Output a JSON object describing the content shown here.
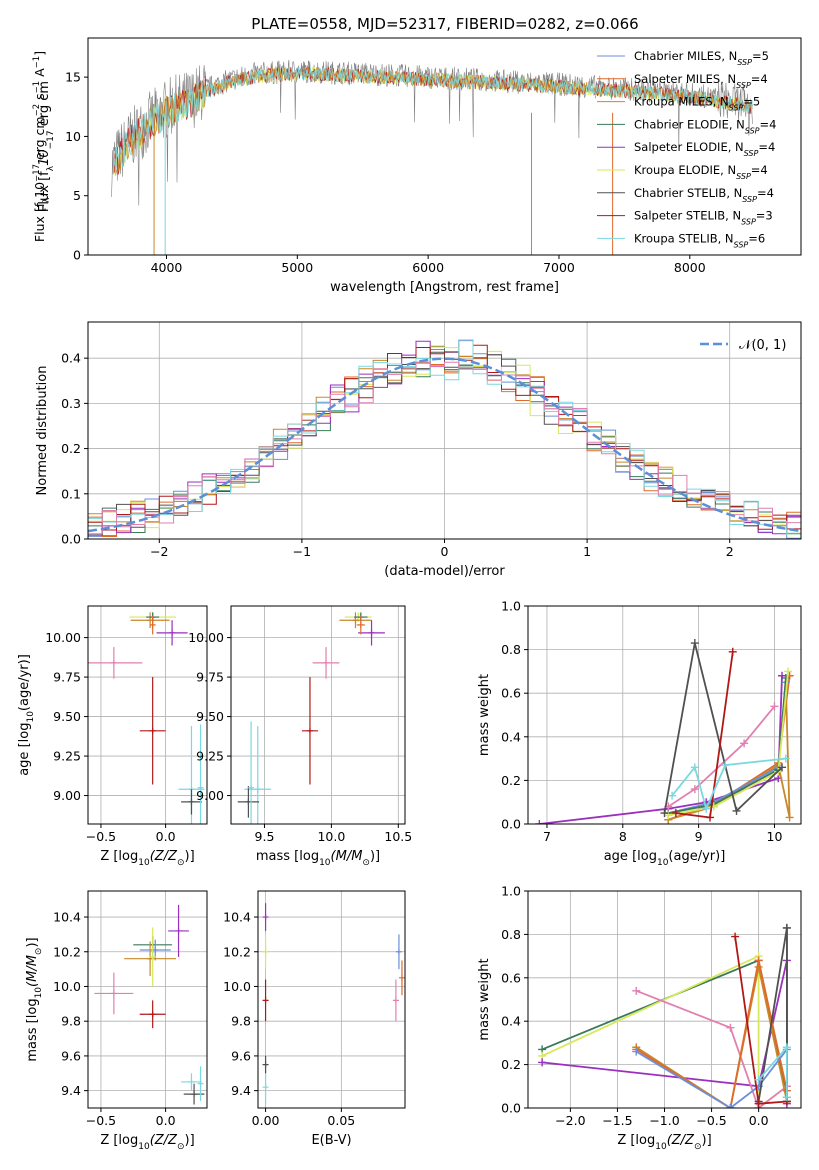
{
  "title": "PLATE=0558, MJD=52317, FIBERID=0282, z=0.066",
  "colors": {
    "chabrier_miles": "#6b8fd8",
    "salpeter_miles": "#e06a2a",
    "kroupa_miles": "#c8882a",
    "chabrier_elodie": "#3a7a5a",
    "salpeter_elodie": "#9b2fbf",
    "kroupa_elodie": "#d8e85a",
    "chabrier_stelib": "#505050",
    "salpeter_stelib": "#b01818",
    "kroupa_stelib": "#7ad8e0",
    "pink": "#e27fb0",
    "spectrum_gray": "#808080",
    "normal_curve": "#5b8fd8",
    "grid": "#b0b0b0"
  },
  "chart_data": [
    {
      "id": "spectrum",
      "type": "line",
      "xlabel": "wavelength [Angstrom, rest frame]",
      "ylabel": "Flux [f",
      "ylabel_parts": [
        "Flux [f",
        "λ",
        "10",
        "−17",
        " erg cm",
        "−2",
        " s",
        "−1",
        " A",
        "−1",
        "]"
      ],
      "xlim": [
        3400,
        8850
      ],
      "ylim": [
        0,
        18.3
      ],
      "xticks": [
        4000,
        5000,
        6000,
        7000,
        8000
      ],
      "yticks": [
        0,
        5,
        10,
        15
      ],
      "grid": false,
      "legend_position": "top-right",
      "legend": [
        {
          "base": "Chabrier MILES, N",
          "sub": "SSP",
          "tail": "=5",
          "color": "#6b8fd8"
        },
        {
          "base": "Salpeter MILES, N",
          "sub": "SSP",
          "tail": "=4",
          "color": "#e06a2a"
        },
        {
          "base": "Kroupa MILES, N",
          "sub": "SSP",
          "tail": "=5",
          "color": "#c8882a"
        },
        {
          "base": "Chabrier ELODIE, N",
          "sub": "SSP",
          "tail": "=4",
          "color": "#3a7a5a"
        },
        {
          "base": "Salpeter ELODIE, N",
          "sub": "SSP",
          "tail": "=4",
          "color": "#9b2fbf"
        },
        {
          "base": "Kroupa ELODIE, N",
          "sub": "SSP",
          "tail": "=4",
          "color": "#d8e85a"
        },
        {
          "base": "Chabrier STELIB, N",
          "sub": "SSP",
          "tail": "=4",
          "color": "#505050"
        },
        {
          "base": "Salpeter STELIB, N",
          "sub": "SSP",
          "tail": "=3",
          "color": "#b01818"
        },
        {
          "base": "Kroupa STELIB, N",
          "sub": "SSP",
          "tail": "=6",
          "color": "#7ad8e0"
        }
      ],
      "continuum": {
        "x": [
          3580,
          3700,
          3800,
          3900,
          4000,
          4100,
          4200,
          4300,
          4500,
          4700,
          5000,
          5500,
          6000,
          6500,
          7000,
          7500,
          8000,
          8300,
          8500
        ],
        "y": [
          7.5,
          9.5,
          10.5,
          11.5,
          12.3,
          12.8,
          13.2,
          14.0,
          14.8,
          15.3,
          15.5,
          15.3,
          15.0,
          14.7,
          14.4,
          14.0,
          13.6,
          13.0,
          12.6
        ]
      },
      "spikes": [
        {
          "x": 3905,
          "color": "#c8882a"
        },
        {
          "x": 3990,
          "color": "#7ad8e0"
        },
        {
          "x": 6790,
          "color": "#c8882a"
        },
        {
          "x": 7410,
          "color": "#e06a2a"
        }
      ]
    },
    {
      "id": "normed",
      "type": "line",
      "xlabel": "(data-model)/error",
      "ylabel": "Normed distribution",
      "xlim": [
        -2.5,
        2.5
      ],
      "ylim": [
        0,
        0.48
      ],
      "xticks": [
        -2,
        -1,
        0,
        1,
        2
      ],
      "yticks": [
        0.0,
        0.1,
        0.2,
        0.3,
        0.4
      ],
      "grid": true,
      "legend_position": "top-right",
      "legend_label": "𝒩(0, 1)",
      "bin_width": 0.1
    },
    {
      "id": "age_vs_z",
      "type": "scatter",
      "xlabel": "Z [log",
      "xlabel_parts": [
        "Z [log",
        "10",
        "(Z/Z",
        "⊙",
        ")]"
      ],
      "ylabel_parts": [
        "age  [log",
        "10",
        "(age/yr)]"
      ],
      "xlim": [
        -0.6,
        0.32
      ],
      "ylim": [
        8.82,
        10.2
      ],
      "xticks": [
        -0.5,
        0.0
      ],
      "yticks": [
        9.0,
        9.25,
        9.5,
        9.75,
        10.0
      ],
      "grid": true,
      "points": [
        {
          "x": -0.1,
          "y": 10.13,
          "xerr": 0.18,
          "yerr": 0.03,
          "color": "#d8e85a"
        },
        {
          "x": -0.12,
          "y": 10.11,
          "xerr": 0.15,
          "yerr": 0.05,
          "color": "#c8882a"
        },
        {
          "x": -0.1,
          "y": 10.13,
          "xerr": 0.05,
          "yerr": 0.03,
          "color": "#3a7a5a"
        },
        {
          "x": 0.05,
          "y": 10.03,
          "xerr": 0.12,
          "yerr": 0.08,
          "color": "#9b2fbf"
        },
        {
          "x": -0.1,
          "y": 10.08,
          "xerr": 0.02,
          "yerr": 0.06,
          "color": "#e06a2a"
        },
        {
          "x": -0.4,
          "y": 9.84,
          "xerr": 0.22,
          "yerr": 0.1,
          "color": "#e27fb0"
        },
        {
          "x": -0.1,
          "y": 9.41,
          "xerr": 0.1,
          "yerr": 0.34,
          "color": "#b01818"
        },
        {
          "x": 0.2,
          "y": 9.04,
          "xerr": 0.1,
          "yerr": 0.4,
          "color": "#7ad8e0"
        },
        {
          "x": 0.2,
          "y": 8.96,
          "xerr": 0.08,
          "yerr": 0.08,
          "color": "#505050"
        },
        {
          "x": 0.27,
          "y": 9.05,
          "xerr": 0.01,
          "yerr": 0.4,
          "color": "#7ad8e0"
        }
      ]
    },
    {
      "id": "age_vs_mass",
      "type": "scatter",
      "xlabel_parts": [
        "mass [log",
        "10",
        "(M/M",
        "⊙",
        ")]"
      ],
      "xlim": [
        9.25,
        10.55
      ],
      "ylim": [
        8.82,
        10.2
      ],
      "xticks": [
        9.5,
        10.0,
        10.5
      ],
      "yticks": [
        9.0,
        9.25,
        9.5,
        9.75,
        10.0
      ],
      "grid": true,
      "points": [
        {
          "x": 10.2,
          "y": 10.13,
          "xerr": 0.1,
          "yerr": 0.03,
          "color": "#d8e85a"
        },
        {
          "x": 10.18,
          "y": 10.11,
          "xerr": 0.12,
          "yerr": 0.05,
          "color": "#c8882a"
        },
        {
          "x": 10.22,
          "y": 10.13,
          "xerr": 0.05,
          "yerr": 0.03,
          "color": "#3a7a5a"
        },
        {
          "x": 10.3,
          "y": 10.03,
          "xerr": 0.1,
          "yerr": 0.08,
          "color": "#9b2fbf"
        },
        {
          "x": 10.22,
          "y": 10.08,
          "xerr": 0.03,
          "yerr": 0.06,
          "color": "#e06a2a"
        },
        {
          "x": 9.96,
          "y": 9.84,
          "xerr": 0.1,
          "yerr": 0.1,
          "color": "#e27fb0"
        },
        {
          "x": 9.84,
          "y": 9.41,
          "xerr": 0.06,
          "yerr": 0.34,
          "color": "#b01818"
        },
        {
          "x": 9.45,
          "y": 9.04,
          "xerr": 0.1,
          "yerr": 0.4,
          "color": "#7ad8e0"
        },
        {
          "x": 9.38,
          "y": 8.96,
          "xerr": 0.08,
          "yerr": 0.1,
          "color": "#505050"
        },
        {
          "x": 9.4,
          "y": 9.05,
          "xerr": 0.01,
          "yerr": 0.42,
          "color": "#7ad8e0"
        }
      ]
    },
    {
      "id": "mw_vs_age",
      "type": "line",
      "xlabel_parts": [
        "age  [log",
        "10",
        "(age/yr)]"
      ],
      "ylabel": "mass weight",
      "xlim": [
        6.75,
        10.35
      ],
      "ylim": [
        0,
        1.0
      ],
      "xticks": [
        7,
        8,
        9,
        10
      ],
      "yticks": [
        0.0,
        0.2,
        0.4,
        0.6,
        0.8,
        1.0
      ],
      "grid": true,
      "series": [
        {
          "color": "#9b2fbf",
          "x": [
            6.9,
            8.6,
            9.1,
            10.05,
            10.1
          ],
          "y": [
            0.0,
            0.07,
            0.1,
            0.21,
            0.68
          ]
        },
        {
          "color": "#e06a2a",
          "x": [
            8.6,
            9.2,
            10.05,
            10.2
          ],
          "y": [
            0.02,
            0.09,
            0.28,
            0.68
          ]
        },
        {
          "color": "#c8882a",
          "x": [
            8.6,
            9.2,
            10.05,
            10.2,
            10.15
          ],
          "y": [
            0.02,
            0.08,
            0.27,
            0.03,
            0.65
          ]
        },
        {
          "color": "#6b8fd8",
          "x": [
            8.6,
            9.2,
            10.05,
            10.15
          ],
          "y": [
            0.05,
            0.1,
            0.26,
            0.65
          ]
        },
        {
          "color": "#3a7a5a",
          "x": [
            8.6,
            9.2,
            10.05,
            10.15
          ],
          "y": [
            0.05,
            0.09,
            0.25,
            0.67
          ]
        },
        {
          "color": "#d8e85a",
          "x": [
            8.6,
            9.2,
            10.05,
            10.18
          ],
          "y": [
            0.04,
            0.08,
            0.24,
            0.7
          ]
        },
        {
          "color": "#e27fb0",
          "x": [
            8.6,
            8.95,
            9.6,
            10.0
          ],
          "y": [
            0.08,
            0.16,
            0.37,
            0.54
          ]
        },
        {
          "color": "#505050",
          "x": [
            8.55,
            8.95,
            9.5,
            10.1
          ],
          "y": [
            0.05,
            0.83,
            0.06,
            0.26
          ]
        },
        {
          "color": "#b01818",
          "x": [
            8.7,
            9.15,
            9.45
          ],
          "y": [
            0.05,
            0.03,
            0.79
          ]
        },
        {
          "color": "#7ad8e0",
          "x": [
            8.65,
            8.95,
            9.1,
            9.35,
            10.15
          ],
          "y": [
            0.13,
            0.26,
            0.07,
            0.27,
            0.3
          ]
        }
      ]
    },
    {
      "id": "mass_vs_z",
      "type": "scatter",
      "xlabel_parts": [
        "Z [log",
        "10",
        "(Z/Z",
        "⊙",
        ")]"
      ],
      "ylabel_parts": [
        "mass [log",
        "10",
        "(M/M",
        "⊙",
        ")]"
      ],
      "xlim": [
        -0.6,
        0.32
      ],
      "ylim": [
        9.3,
        10.55
      ],
      "xticks": [
        -0.5,
        0.0
      ],
      "yticks": [
        9.4,
        9.6,
        9.8,
        10.0,
        10.2,
        10.4
      ],
      "grid": true,
      "points": [
        {
          "x": -0.1,
          "y": 10.24,
          "xerr": 0.15,
          "yerr": 0.05,
          "color": "#3a7a5a"
        },
        {
          "x": -0.08,
          "y": 10.21,
          "xerr": 0.12,
          "yerr": 0.06,
          "color": "#6b8fd8"
        },
        {
          "x": -0.12,
          "y": 10.16,
          "xerr": 0.2,
          "yerr": 0.1,
          "color": "#c8882a"
        },
        {
          "x": 0.1,
          "y": 10.32,
          "xerr": 0.08,
          "yerr": 0.15,
          "color": "#9b2fbf"
        },
        {
          "x": -0.1,
          "y": 10.17,
          "xerr": 0.02,
          "yerr": 0.17,
          "color": "#d8e85a"
        },
        {
          "x": -0.4,
          "y": 9.96,
          "xerr": 0.15,
          "yerr": 0.12,
          "color": "#e27fb0"
        },
        {
          "x": -0.1,
          "y": 9.84,
          "xerr": 0.1,
          "yerr": 0.08,
          "color": "#b01818"
        },
        {
          "x": 0.2,
          "y": 9.45,
          "xerr": 0.08,
          "yerr": 0.05,
          "color": "#7ad8e0"
        },
        {
          "x": 0.22,
          "y": 9.38,
          "xerr": 0.08,
          "yerr": 0.06,
          "color": "#505050"
        },
        {
          "x": 0.27,
          "y": 9.44,
          "xerr": 0.01,
          "yerr": 0.1,
          "color": "#7ad8e0"
        }
      ]
    },
    {
      "id": "mass_vs_ebv",
      "type": "scatter",
      "xlabel": "E(B-V)",
      "xlim": [
        -0.005,
        0.092
      ],
      "ylim": [
        9.3,
        10.55
      ],
      "xticks": [
        0.0,
        0.05
      ],
      "yticks": [
        9.4,
        9.6,
        9.8,
        10.0,
        10.2,
        10.4
      ],
      "grid": true,
      "points": [
        {
          "x": 0.0,
          "y": 10.4,
          "yerr": 0.08,
          "color": "#9b2fbf"
        },
        {
          "x": 0.0,
          "y": 10.2,
          "yerr": 0.1,
          "color": "#d8e85a"
        },
        {
          "x": 0.0,
          "y": 9.92,
          "yerr": 0.12,
          "color": "#b01818"
        },
        {
          "x": 0.0,
          "y": 9.42,
          "yerr": 0.1,
          "color": "#7ad8e0"
        },
        {
          "x": 0.0,
          "y": 9.55,
          "yerr": 0.05,
          "color": "#505050"
        },
        {
          "x": 0.088,
          "y": 10.2,
          "yerr": 0.1,
          "color": "#6b8fd8"
        },
        {
          "x": 0.09,
          "y": 10.05,
          "yerr": 0.1,
          "color": "#e06a2a"
        },
        {
          "x": 0.086,
          "y": 9.92,
          "yerr": 0.12,
          "color": "#e27fb0"
        }
      ]
    },
    {
      "id": "mw_vs_z",
      "type": "line",
      "xlabel_parts": [
        "Z [log",
        "10",
        "(Z/Z",
        "⊙",
        ")]"
      ],
      "ylabel": "mass weight",
      "xlim": [
        -2.45,
        0.45
      ],
      "ylim": [
        0,
        1.0
      ],
      "xticks": [
        -2.0,
        -1.5,
        -1.0,
        -0.5,
        0.0
      ],
      "yticks": [
        0.0,
        0.2,
        0.4,
        0.6,
        0.8,
        1.0
      ],
      "grid": true,
      "series": [
        {
          "color": "#3a7a5a",
          "x": [
            -2.3,
            0.0,
            0.3,
            0.3
          ],
          "y": [
            0.27,
            0.68,
            0.05,
            0.83
          ]
        },
        {
          "color": "#d8e85a",
          "x": [
            -2.3,
            0.0,
            0.0,
            0.3
          ],
          "y": [
            0.24,
            0.7,
            0.0,
            0.1
          ]
        },
        {
          "color": "#9b2fbf",
          "x": [
            -2.3,
            0.0,
            0.3,
            0.3
          ],
          "y": [
            0.21,
            0.1,
            0.68,
            0.02
          ]
        },
        {
          "color": "#e27fb0",
          "x": [
            -1.3,
            -0.3,
            0.0,
            0.3
          ],
          "y": [
            0.54,
            0.37,
            0.0,
            0.1
          ]
        },
        {
          "color": "#c8882a",
          "x": [
            -1.3,
            -0.3,
            0.0,
            0.3
          ],
          "y": [
            0.28,
            0.0,
            0.65,
            0.03
          ]
        },
        {
          "color": "#e06a2a",
          "x": [
            -1.3,
            -0.3,
            0.0,
            0.3
          ],
          "y": [
            0.27,
            0.0,
            0.68,
            0.08
          ]
        },
        {
          "color": "#6b8fd8",
          "x": [
            -1.3,
            -0.3,
            0.0,
            0.3
          ],
          "y": [
            0.26,
            0.0,
            0.1,
            0.27
          ]
        },
        {
          "color": "#505050",
          "x": [
            0.0,
            0.3,
            0.3
          ],
          "y": [
            0.03,
            0.83,
            0.03
          ]
        },
        {
          "color": "#b01818",
          "x": [
            -0.25,
            0.0,
            0.3
          ],
          "y": [
            0.79,
            0.02,
            0.03
          ]
        },
        {
          "color": "#7ad8e0",
          "x": [
            0.0,
            0.3,
            0.3
          ],
          "y": [
            0.13,
            0.28,
            0.05
          ]
        }
      ]
    }
  ]
}
